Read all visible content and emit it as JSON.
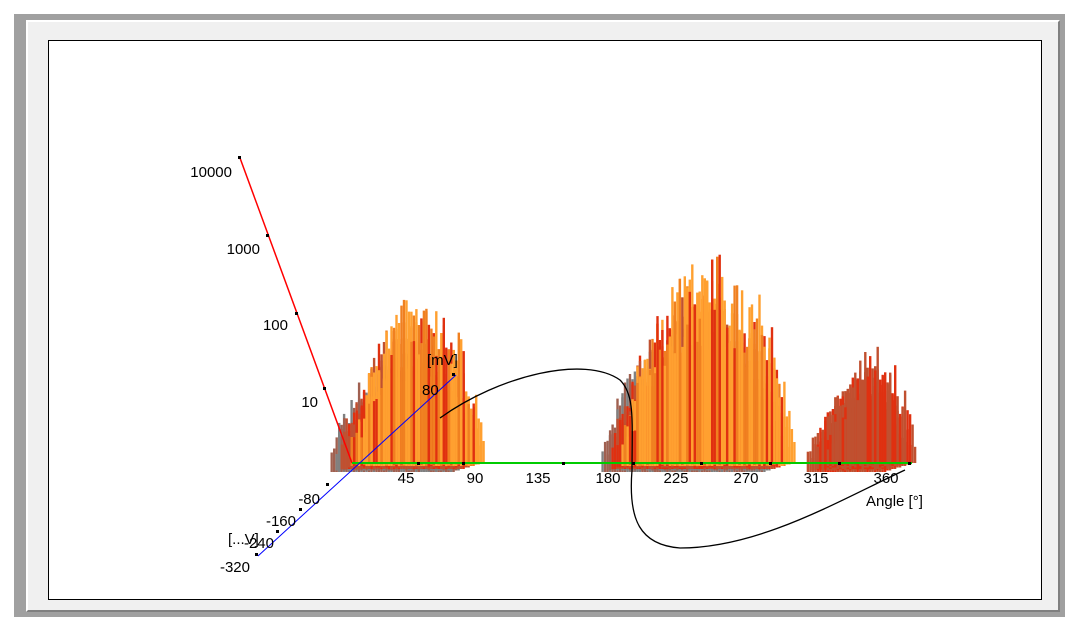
{
  "chart_data": {
    "type": "bar",
    "projection": "3d",
    "x_axis": {
      "label": "Angle [°]",
      "ticks": [
        "45",
        "90",
        "135",
        "180",
        "225",
        "270",
        "315",
        "360"
      ],
      "range": [
        0,
        360
      ],
      "color": "#00cc00"
    },
    "y_axis": {
      "label": "",
      "scale": "log",
      "ticks": [
        "10",
        "100",
        "1000",
        "10000"
      ],
      "range": [
        1,
        10000
      ],
      "color": "#ff0000"
    },
    "z_axis": {
      "label": "[mV]",
      "ticks_positive": [
        "80"
      ],
      "ticks_negative": [
        "-80",
        "-160",
        "-240",
        "-320"
      ],
      "label_negative": "[...V]",
      "color": "#0000ff"
    },
    "palette": [
      "#ffa030",
      "#f08020",
      "#e03010",
      "#c05030",
      "#a06050",
      "#808080"
    ],
    "clusters": [
      {
        "start_deg": 0,
        "end_deg": 85,
        "peak": 200
      },
      {
        "start_deg": 178,
        "end_deg": 290,
        "peak": 700
      },
      {
        "start_deg": 310,
        "end_deg": 365,
        "peak": 35
      }
    ],
    "sine_reference": {
      "color": "#000000"
    }
  }
}
